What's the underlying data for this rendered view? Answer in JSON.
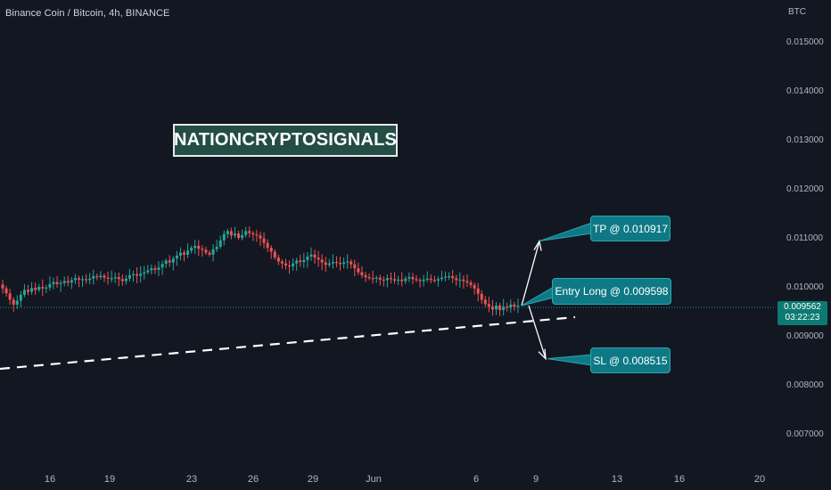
{
  "header": {
    "symbol_title": "Binance Coin / Bitcoin, 4h, BINANCE",
    "currency": "BTC"
  },
  "watermark": {
    "text": "NATIONCRYPTOSIGNALS"
  },
  "annotations": {
    "tp_label": "TP @ 0.010917",
    "entry_label": "Entry Long @ 0.009598",
    "sl_label": "SL @ 0.008515"
  },
  "current_price": {
    "value": "0.009562",
    "countdown": "03:22:23"
  },
  "colors": {
    "background": "#131722",
    "up": "#26a69a",
    "down": "#ef5350",
    "callout": "#0e7984",
    "axis_text": "#b2b5be"
  },
  "chart_data": {
    "type": "candlestick",
    "title": "Binance Coin / Bitcoin, 4h, BINANCE",
    "ylabel": "BTC",
    "ylim": [
      0.0065,
      0.0158
    ],
    "y_ticks": [
      "0.015000",
      "0.014000",
      "0.013000",
      "0.012000",
      "0.011000",
      "0.010000",
      "0.009000",
      "0.008000",
      "0.007000"
    ],
    "x_ticks": [
      "16",
      "19",
      "23",
      "26",
      "29",
      "Jun",
      "6",
      "9",
      "13",
      "16",
      "20"
    ],
    "levels": {
      "tp": 0.010917,
      "entry": 0.009598,
      "sl": 0.008515,
      "last": 0.009562
    },
    "trendline": {
      "from": [
        "May 11",
        0.0083
      ],
      "to": [
        "Jun 10",
        0.0095
      ]
    },
    "close_series": [
      0.00995,
      0.00985,
      0.00972,
      0.00962,
      0.0097,
      0.00982,
      0.00992,
      0.00988,
      0.00996,
      0.00992,
      0.00998,
      0.00995,
      0.00997,
      0.01004,
      0.01008,
      0.01004,
      0.01006,
      0.0101,
      0.01007,
      0.01012,
      0.01016,
      0.01013,
      0.01014,
      0.01012,
      0.01015,
      0.0102,
      0.01018,
      0.01021,
      0.01017,
      0.01015,
      0.01016,
      0.01018,
      0.01014,
      0.0101,
      0.01015,
      0.01022,
      0.01024,
      0.01021,
      0.01025,
      0.01028,
      0.01032,
      0.01036,
      0.01033,
      0.01038,
      0.01045,
      0.01052,
      0.01048,
      0.01056,
      0.01062,
      0.01068,
      0.01064,
      0.01072,
      0.01078,
      0.01082,
      0.01076,
      0.01074,
      0.01068,
      0.01064,
      0.01075,
      0.0108,
      0.01093,
      0.01106,
      0.01112,
      0.01103,
      0.01107,
      0.01098,
      0.01104,
      0.01112,
      0.01108,
      0.01105,
      0.01103,
      0.01097,
      0.01088,
      0.01078,
      0.0107,
      0.01058,
      0.0105,
      0.01046,
      0.01042,
      0.0104,
      0.01046,
      0.01052,
      0.01049,
      0.01053,
      0.0106,
      0.01064,
      0.01058,
      0.01054,
      0.01048,
      0.01043,
      0.01046,
      0.01049,
      0.01047,
      0.01045,
      0.01048,
      0.0105,
      0.01044,
      0.01036,
      0.01028,
      0.01022,
      0.01018,
      0.01016,
      0.01015,
      0.01017,
      0.01013,
      0.01012,
      0.01016,
      0.01014,
      0.01011,
      0.01013,
      0.0101,
      0.01015,
      0.01018,
      0.01014,
      0.01012,
      0.0101,
      0.01013,
      0.01015,
      0.01012,
      0.01011,
      0.01014,
      0.01017,
      0.01019,
      0.0102,
      0.01016,
      0.01012,
      0.01013,
      0.0101,
      0.01007,
      0.01002,
      0.00995,
      0.00984,
      0.00972,
      0.00963,
      0.00958,
      0.00952,
      0.0096,
      0.00951,
      0.00958,
      0.00956,
      0.00962,
      0.00958,
      0.0096
    ]
  }
}
